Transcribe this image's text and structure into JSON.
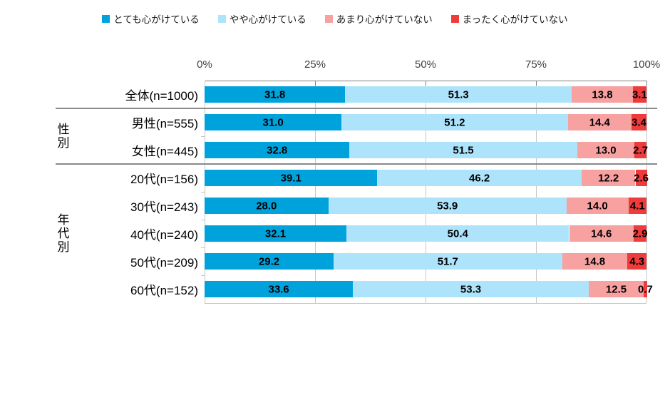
{
  "chart_data": {
    "type": "bar",
    "stacked": true,
    "orientation": "horizontal",
    "title": "",
    "x_ticks": [
      "0%",
      "25%",
      "50%",
      "75%",
      "100%"
    ],
    "xlim": [
      0,
      100
    ],
    "value_label_decimals": 1,
    "legend_position": "top",
    "grid": true,
    "categories": [
      "全体(n=1000)",
      "男性(n=555)",
      "女性(n=445)",
      "20代(n=156)",
      "30代(n=243)",
      "40代(n=240)",
      "50代(n=209)",
      "60代(n=152)"
    ],
    "category_groups": [
      {
        "label": "",
        "start": 0,
        "count": 1
      },
      {
        "label": "性別",
        "start": 1,
        "count": 2
      },
      {
        "label": "年代別",
        "start": 3,
        "count": 5
      }
    ],
    "series": [
      {
        "name": "とても心がけている",
        "color": "#00A2DC",
        "values": [
          31.8,
          31.0,
          32.8,
          39.1,
          28.0,
          32.1,
          29.2,
          33.6
        ]
      },
      {
        "name": "やや心がけている",
        "color": "#AEE4FB",
        "values": [
          51.3,
          51.2,
          51.5,
          46.2,
          53.9,
          50.4,
          51.7,
          53.3
        ]
      },
      {
        "name": "あまり心がけていない",
        "color": "#F7A1A1",
        "values": [
          13.8,
          14.4,
          13.0,
          12.2,
          14.0,
          14.6,
          14.8,
          12.5
        ]
      },
      {
        "name": "まったく心がけていない",
        "color": "#EF3B3B",
        "values": [
          3.1,
          3.4,
          2.7,
          2.6,
          4.1,
          2.9,
          4.3,
          0.7
        ]
      }
    ]
  },
  "styles": {
    "background": "#FFFFFF",
    "grid_color": "#C6C6C6",
    "axis_line_color": "#808080",
    "side_axis_color": "#C6C6C6",
    "divider_color": "#8A8A8A",
    "value_label_color": "#000000",
    "tick_label_color": "#3F3F3F"
  }
}
